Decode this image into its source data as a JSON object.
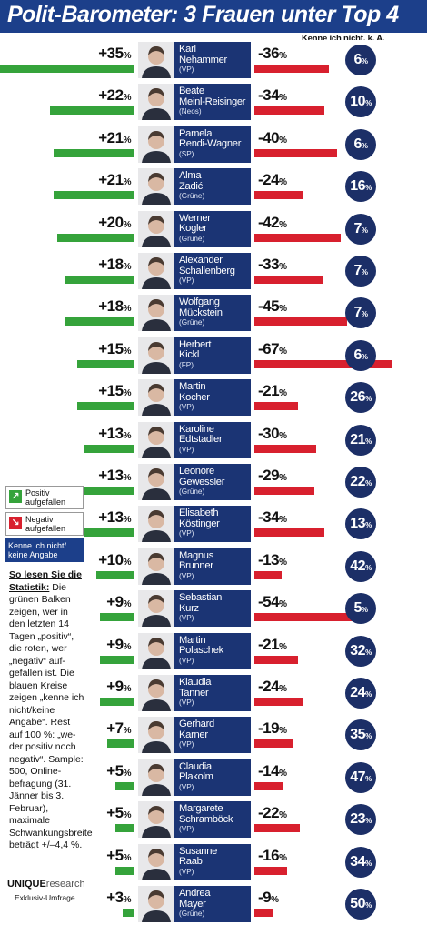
{
  "header": {
    "title": "Polit-Barometer: 3 Frauen unter Top 4"
  },
  "column_heading": "Kenne ich nicht, k. A.",
  "legend": {
    "positive": "Positiv aufgefallen",
    "negative": "Negativ aufgefallen",
    "unknown": "Kenne ich nicht/ keine Angabe",
    "positive_icon": "arrow-up-right",
    "negative_icon": "arrow-down-right"
  },
  "explanation": {
    "heading": "So lesen Sie die Statistik:",
    "text": "Die grünen Balken zeigen, wer in den letzten 14 Tagen „positiv“, die roten, wer „negativ“ auf-gefallen ist. Die blauen Kreise zeigen „kenne ich nicht/keine Angabe“. Rest auf 100 %: „we-der positiv noch negativ“. Sample: 500, Online-befragung (31. Jänner bis 3. Februar), maximale Schwankungsbreite beträgt +/–4,4 %."
  },
  "brand": {
    "name": "UNIQUE",
    "suffix": "research",
    "tagline": "Exklusiv-Umfrage"
  },
  "colors": {
    "positive": "#35a33b",
    "negative": "#d8202e",
    "navy": "#1b3474",
    "header": "#1c3f8a"
  },
  "chart_data": {
    "type": "bar",
    "title": "Polit-Barometer: 3 Frauen unter Top 4",
    "categories": [
      "Karl Nehammer",
      "Beate Meinl-Reisinger",
      "Pamela Rendi-Wagner",
      "Alma Zadić",
      "Werner Kogler",
      "Alexander Schallenberg",
      "Wolfgang Mückstein",
      "Herbert Kickl",
      "Martin Kocher",
      "Karoline Edtstadler",
      "Leonore Gewessler",
      "Elisabeth Köstinger",
      "Magnus Brunner",
      "Sebastian Kurz",
      "Martin Polaschek",
      "Klaudia Tanner",
      "Gerhard Karner",
      "Claudia Plakolm",
      "Margarete Schramböck",
      "Susanne Raab",
      "Andrea Mayer"
    ],
    "series": [
      {
        "name": "Positiv aufgefallen",
        "values": [
          35,
          22,
          21,
          21,
          20,
          18,
          18,
          15,
          15,
          13,
          13,
          13,
          10,
          9,
          9,
          9,
          7,
          5,
          5,
          5,
          3
        ]
      },
      {
        "name": "Negativ aufgefallen",
        "values": [
          -36,
          -34,
          -40,
          -24,
          -42,
          -33,
          -45,
          -67,
          -21,
          -30,
          -29,
          -34,
          -13,
          -54,
          -21,
          -24,
          -19,
          -14,
          -22,
          -16,
          -9
        ]
      },
      {
        "name": "Kenne ich nicht/ keine Angabe",
        "values": [
          6,
          10,
          6,
          16,
          7,
          7,
          7,
          6,
          26,
          21,
          22,
          13,
          42,
          5,
          32,
          24,
          35,
          47,
          23,
          34,
          50
        ]
      }
    ],
    "unit": "%"
  },
  "rows": [
    {
      "first": "Karl",
      "last": "Nehammer",
      "party": "(VP)",
      "pos": "+35",
      "neg": "-36",
      "unk": "6"
    },
    {
      "first": "Beate",
      "last": "Meinl-Reisinger",
      "party": "(Neos)",
      "pos": "+22",
      "neg": "-34",
      "unk": "10"
    },
    {
      "first": "Pamela",
      "last": "Rendi-Wagner",
      "party": "(SP)",
      "pos": "+21",
      "neg": "-40",
      "unk": "6"
    },
    {
      "first": "Alma",
      "last": "Zadić",
      "party": "(Grüne)",
      "pos": "+21",
      "neg": "-24",
      "unk": "16"
    },
    {
      "first": "Werner",
      "last": "Kogler",
      "party": "(Grüne)",
      "pos": "+20",
      "neg": "-42",
      "unk": "7"
    },
    {
      "first": "Alexander",
      "last": "Schallenberg",
      "party": "(VP)",
      "pos": "+18",
      "neg": "-33",
      "unk": "7"
    },
    {
      "first": "Wolfgang",
      "last": "Mückstein",
      "party": "(Grüne)",
      "pos": "+18",
      "neg": "-45",
      "unk": "7"
    },
    {
      "first": "Herbert",
      "last": "Kickl",
      "party": "(FP)",
      "pos": "+15",
      "neg": "-67",
      "unk": "6"
    },
    {
      "first": "Martin",
      "last": "Kocher",
      "party": "(VP)",
      "pos": "+15",
      "neg": "-21",
      "unk": "26"
    },
    {
      "first": "Karoline",
      "last": "Edtstadler",
      "party": "(VP)",
      "pos": "+13",
      "neg": "-30",
      "unk": "21"
    },
    {
      "first": "Leonore",
      "last": "Gewessler",
      "party": "(Grüne)",
      "pos": "+13",
      "neg": "-29",
      "unk": "22"
    },
    {
      "first": "Elisabeth",
      "last": "Köstinger",
      "party": "(VP)",
      "pos": "+13",
      "neg": "-34",
      "unk": "13"
    },
    {
      "first": "Magnus",
      "last": "Brunner",
      "party": "(VP)",
      "pos": "+10",
      "neg": "-13",
      "unk": "42"
    },
    {
      "first": "Sebastian",
      "last": "Kurz",
      "party": "(VP)",
      "pos": "+9",
      "neg": "-54",
      "unk": "5"
    },
    {
      "first": "Martin",
      "last": "Polaschek",
      "party": "(VP)",
      "pos": "+9",
      "neg": "-21",
      "unk": "32"
    },
    {
      "first": "Klaudia",
      "last": "Tanner",
      "party": "(VP)",
      "pos": "+9",
      "neg": "-24",
      "unk": "24"
    },
    {
      "first": "Gerhard",
      "last": "Karner",
      "party": "(VP)",
      "pos": "+7",
      "neg": "-19",
      "unk": "35"
    },
    {
      "first": "Claudia",
      "last": "Plakolm",
      "party": "(VP)",
      "pos": "+5",
      "neg": "-14",
      "unk": "47"
    },
    {
      "first": "Margarete",
      "last": "Schramböck",
      "party": "(VP)",
      "pos": "+5",
      "neg": "-22",
      "unk": "23"
    },
    {
      "first": "Susanne",
      "last": "Raab",
      "party": "(VP)",
      "pos": "+5",
      "neg": "-16",
      "unk": "34"
    },
    {
      "first": "Andrea",
      "last": "Mayer",
      "party": "(Grüne)",
      "pos": "+3",
      "neg": "-9",
      "unk": "50"
    }
  ]
}
